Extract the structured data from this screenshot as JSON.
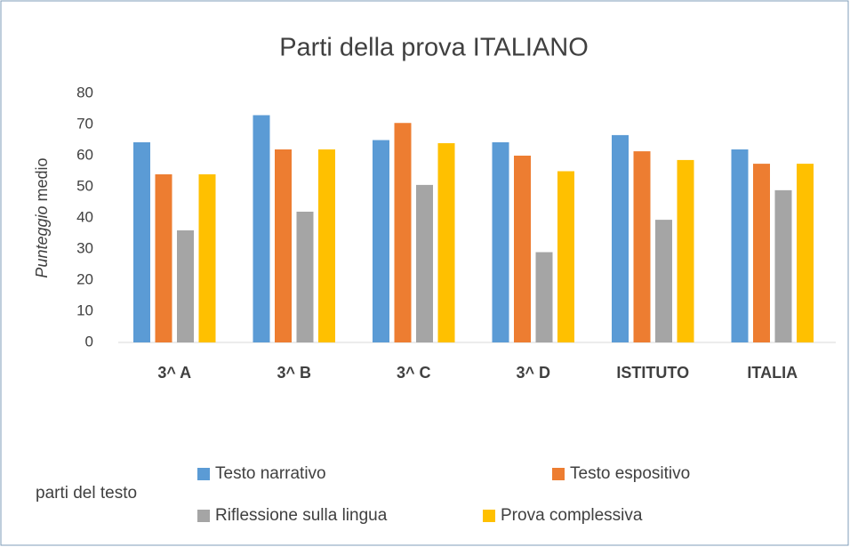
{
  "chart_data": {
    "type": "bar",
    "title": "Parti della prova ITALIANO",
    "ylabel": [
      "Punteggio",
      "medio"
    ],
    "legend_title": "parti del testo",
    "categories": [
      "3^ A",
      "3^ B",
      "3^ C",
      "3^ D",
      "ISTITUTO",
      "ITALIA"
    ],
    "series": [
      {
        "name": "Testo narrativo",
        "color": "#5b9bd5",
        "values": [
          64.3,
          73,
          65,
          64.3,
          66.6,
          62
        ]
      },
      {
        "name": "Testo espositivo",
        "color": "#ed7d31",
        "values": [
          54,
          62,
          70.5,
          60,
          61.4,
          57.4
        ]
      },
      {
        "name": "Riflessione sulla lingua",
        "color": "#a5a5a5",
        "values": [
          36,
          42,
          50.6,
          29,
          39.4,
          48.9
        ]
      },
      {
        "name": "Prova complessiva",
        "color": "#ffc000",
        "values": [
          54,
          62,
          64,
          55,
          58.6,
          57.4
        ]
      }
    ],
    "ylim": [
      0,
      80
    ],
    "yticks": [
      0,
      10,
      20,
      30,
      40,
      50,
      60,
      70,
      80
    ],
    "grid": false
  }
}
